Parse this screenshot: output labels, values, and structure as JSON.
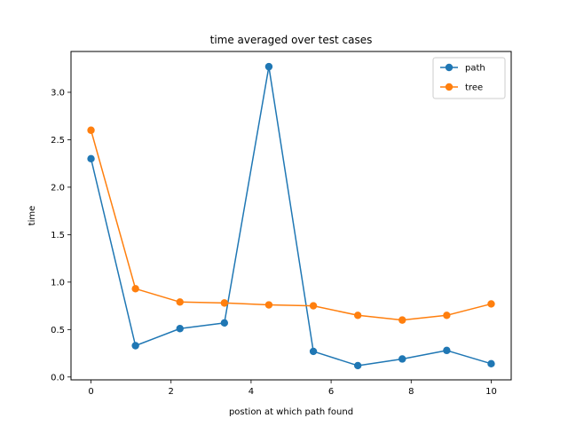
{
  "chart_data": {
    "type": "line",
    "title": "time averaged over test cases",
    "xlabel": "postion at which path found",
    "ylabel": "time",
    "x": [
      0,
      1.111,
      2.222,
      3.333,
      4.444,
      5.556,
      6.667,
      7.778,
      8.889,
      10
    ],
    "xlim": [
      -0.5,
      10.5
    ],
    "ylim": [
      -0.03,
      3.43
    ],
    "xticks": [
      "0",
      "2",
      "4",
      "6",
      "8",
      "10"
    ],
    "yticks": [
      "0.0",
      "0.5",
      "1.0",
      "1.5",
      "2.0",
      "2.5",
      "3.0"
    ],
    "grid": false,
    "legend_position": "top-right",
    "series": [
      {
        "name": "path",
        "color": "#1f77b4",
        "marker": "circle",
        "values": [
          2.3,
          0.33,
          0.51,
          0.57,
          3.27,
          0.27,
          0.12,
          0.19,
          0.28,
          0.14
        ]
      },
      {
        "name": "tree",
        "color": "#ff7f0e",
        "marker": "circle",
        "values": [
          2.6,
          0.93,
          0.79,
          0.78,
          0.76,
          0.75,
          0.65,
          0.6,
          0.65,
          0.77
        ]
      }
    ]
  }
}
